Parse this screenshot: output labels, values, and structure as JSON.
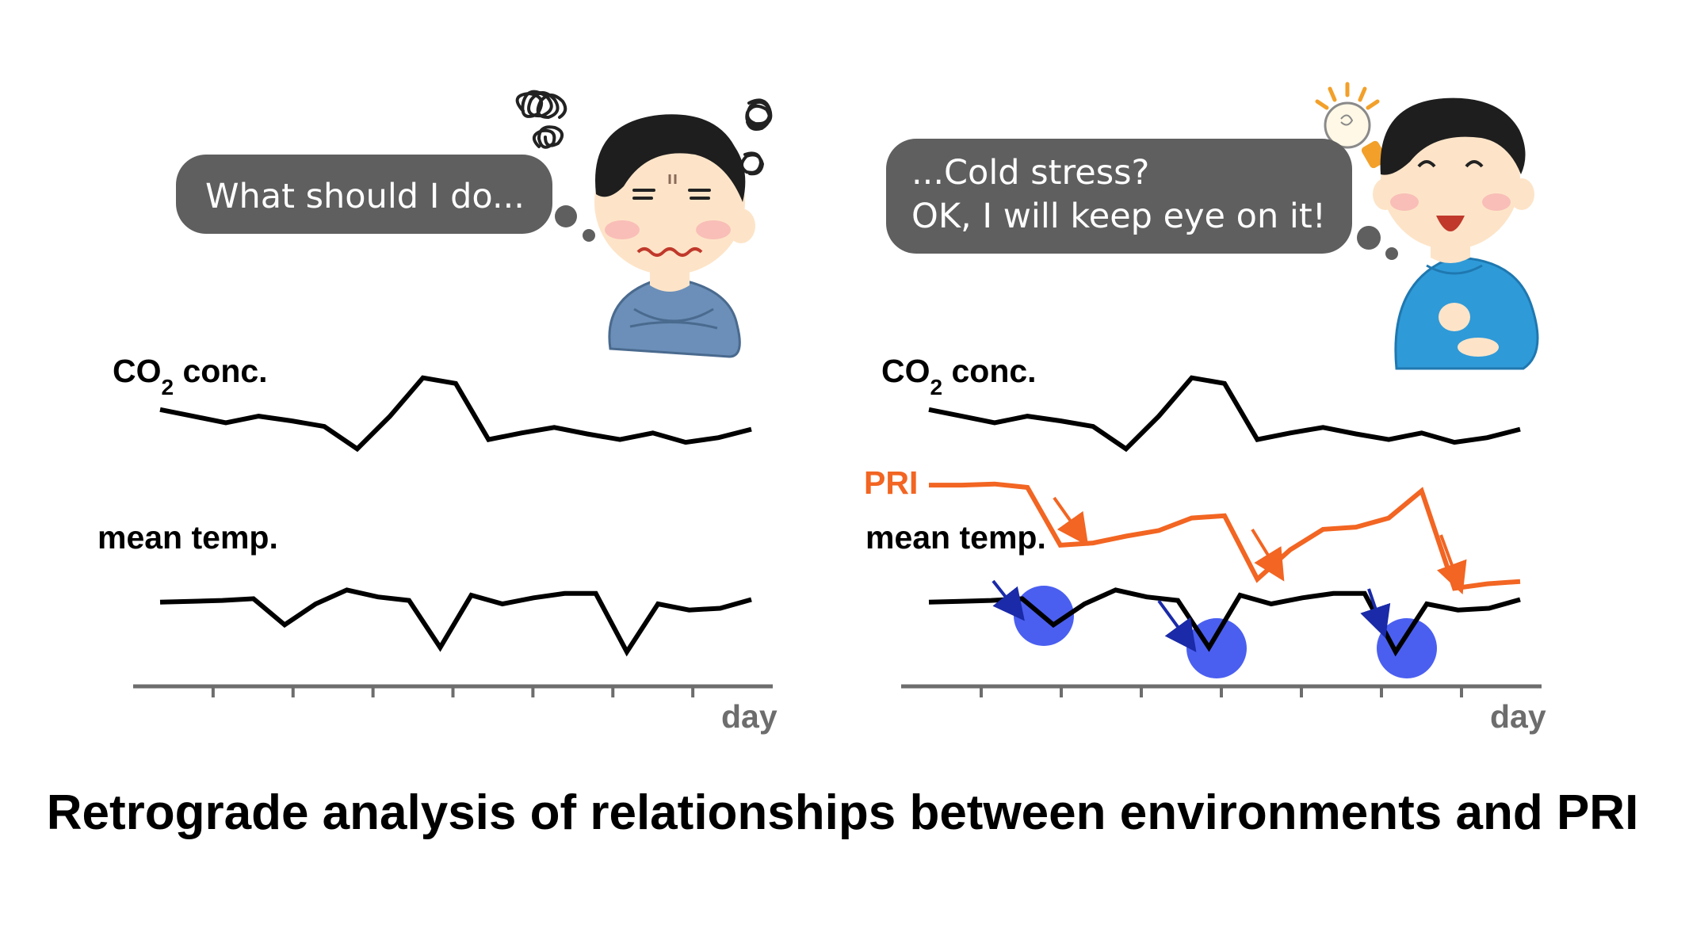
{
  "left_panel": {
    "thought": "What should I do...",
    "co2_label": "CO",
    "co2_sub": "2",
    "co2_suffix": " conc.",
    "temp_label": "mean temp.",
    "axis_label": "day"
  },
  "right_panel": {
    "thought_line1": "...Cold stress?",
    "thought_line2": "OK, I will keep eye on it!",
    "co2_label": "CO",
    "co2_sub": "2",
    "co2_suffix": " conc.",
    "pri_label": "PRI",
    "temp_label": "mean temp.",
    "axis_label": "day"
  },
  "caption": "Retrograde analysis of relationships between environments and PRI",
  "colors": {
    "bubble": "#5f5f5f",
    "pri": "#f26522",
    "highlight": "#4a5ff0",
    "arrow_blue": "#1a2aa8",
    "axis": "#6d6d6d",
    "confused_shirt": "#6b8fb8",
    "happy_shirt": "#2f9ad8"
  },
  "icons": [
    "confused-person-icon",
    "idea-person-icon",
    "lightbulb-icon",
    "scribble-icon"
  ],
  "series": {
    "co2": [
      0.62,
      0.55,
      0.48,
      0.55,
      0.5,
      0.44,
      0.2,
      0.55,
      0.96,
      0.9,
      0.3,
      0.37,
      0.43,
      0.36,
      0.3,
      0.37,
      0.27,
      0.32,
      0.41
    ],
    "temp": [
      0.62,
      0.63,
      0.64,
      0.66,
      0.36,
      0.6,
      0.76,
      0.68,
      0.64,
      0.1,
      0.7,
      0.6,
      0.67,
      0.72,
      0.72,
      0.05,
      0.6,
      0.53,
      0.55,
      0.65
    ],
    "pri": [
      0.95,
      0.95,
      0.96,
      0.93,
      0.42,
      0.44,
      0.5,
      0.55,
      0.66,
      0.68,
      0.12,
      0.38,
      0.56,
      0.58,
      0.66,
      0.9,
      0.04,
      0.08,
      0.1
    ]
  }
}
